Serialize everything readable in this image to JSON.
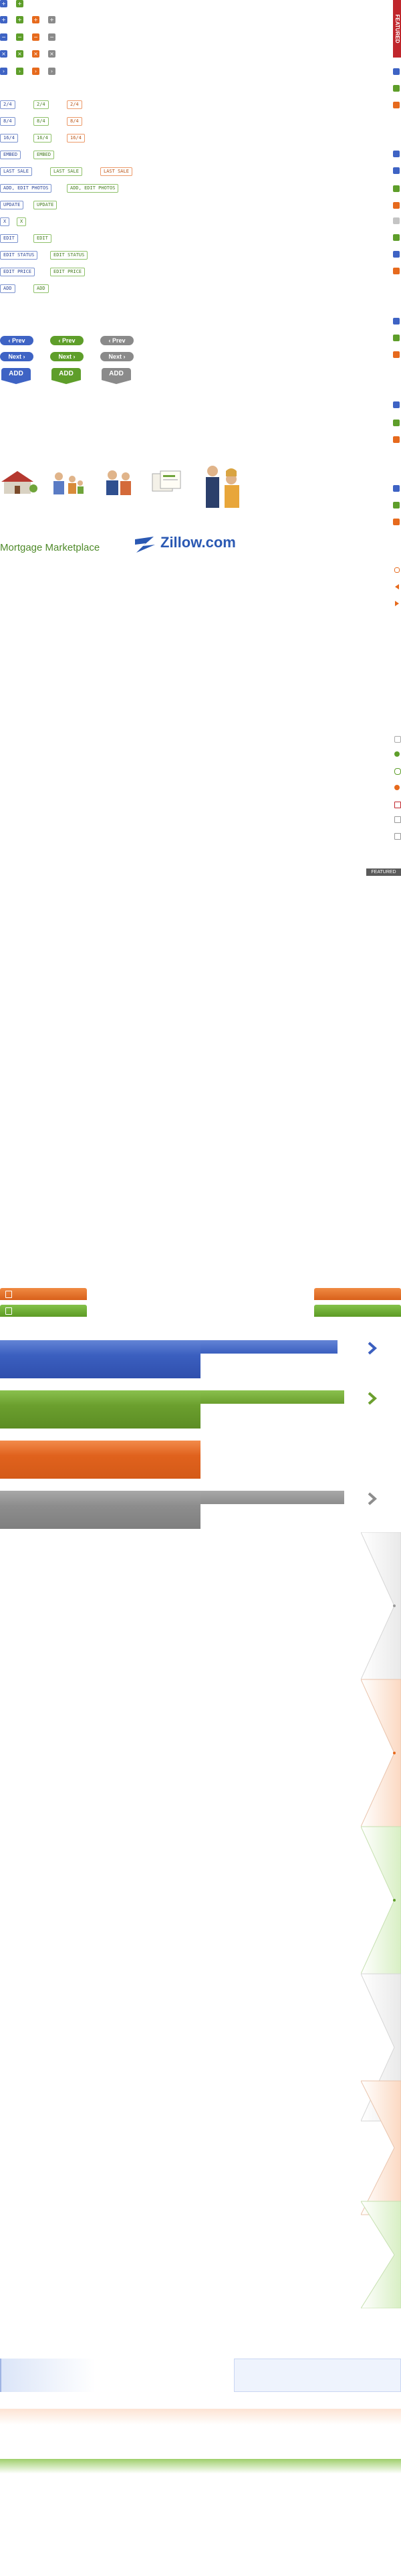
{
  "sprite": {
    "featured_ribbon": "FEATURED",
    "featured_badge": "FEATURED",
    "tags": {
      "row1": [
        "2/4",
        "2/4",
        "2/4"
      ],
      "row2": [
        "8/4",
        "8/4",
        "8/4"
      ],
      "row3": [
        "16/4",
        "16/4",
        "16/4"
      ],
      "row4": [
        "EMBED",
        "EMBED"
      ],
      "row5": [
        "LAST SALE",
        "LAST SALE",
        "LAST SALE"
      ],
      "row6": [
        "ADD, EDIT PHOTOS",
        "ADD, EDIT PHOTOS"
      ],
      "row7": [
        "UPDATE",
        "UPDATE"
      ],
      "row8": [
        "X",
        "X"
      ],
      "row9": [
        "EDIT",
        "EDIT"
      ],
      "row10": [
        "EDIT STATUS",
        "EDIT STATUS"
      ],
      "row11": [
        "EDIT PRICE",
        "EDIT PRICE"
      ],
      "row12": [
        "ADD",
        "ADD"
      ]
    },
    "buttons": {
      "prev": "Prev",
      "next": "Next",
      "add": "ADD"
    },
    "mortgage_marketplace": "Mortgage Marketplace",
    "zillow": "Zillow.com"
  }
}
